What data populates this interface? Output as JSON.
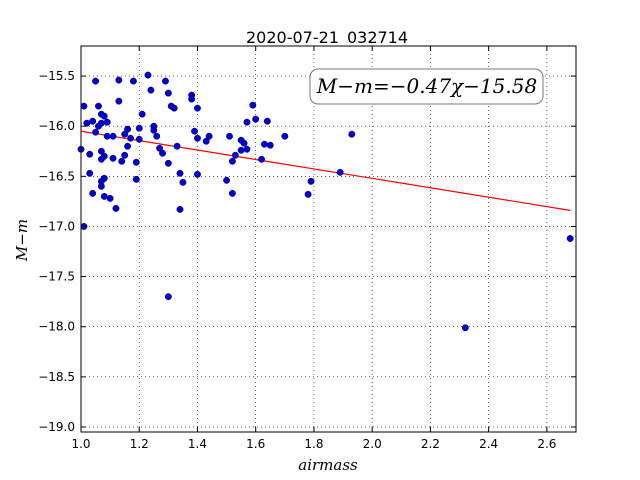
{
  "chart_data": {
    "type": "scatter",
    "title": "2020-07-21_032714",
    "xlabel": "airmass",
    "ylabel": "M−m",
    "xlim": [
      1.0,
      2.7
    ],
    "ylim": [
      -19.05,
      -15.2
    ],
    "y_inverted": true,
    "grid": true,
    "x_ticks": [
      1.0,
      1.2,
      1.4,
      1.6,
      1.8,
      2.0,
      2.2,
      2.4,
      2.6
    ],
    "x_tick_labels": [
      "1.0",
      "1.2",
      "1.4",
      "1.6",
      "1.8",
      "2.0",
      "2.2",
      "2.4",
      "2.6"
    ],
    "y_ticks": [
      -15.5,
      -16.0,
      -16.5,
      -17.0,
      -17.5,
      -18.0,
      -18.5,
      -19.0
    ],
    "y_tick_labels": [
      "−15.5",
      "−16.0",
      "−16.5",
      "−17.0",
      "−17.5",
      "−18.0",
      "−18.5",
      "−19.0"
    ],
    "annotation": "M−m=−0.47χ−15.58",
    "fit": {
      "slope": -0.47,
      "intercept": -15.58,
      "x_range": [
        1.0,
        2.68
      ],
      "color": "#ff0000"
    },
    "point_color": "#0000cc",
    "points": [
      [
        1.0,
        -16.23
      ],
      [
        1.01,
        -17.0
      ],
      [
        1.01,
        -15.8
      ],
      [
        1.02,
        -15.97
      ],
      [
        1.03,
        -16.28
      ],
      [
        1.03,
        -16.47
      ],
      [
        1.04,
        -16.67
      ],
      [
        1.04,
        -15.95
      ],
      [
        1.05,
        -15.55
      ],
      [
        1.05,
        -16.06
      ],
      [
        1.06,
        -16.0
      ],
      [
        1.06,
        -15.8
      ],
      [
        1.07,
        -15.88
      ],
      [
        1.07,
        -15.97
      ],
      [
        1.07,
        -16.25
      ],
      [
        1.07,
        -16.33
      ],
      [
        1.07,
        -16.55
      ],
      [
        1.07,
        -16.6
      ],
      [
        1.08,
        -15.9
      ],
      [
        1.08,
        -16.3
      ],
      [
        1.08,
        -16.52
      ],
      [
        1.08,
        -16.7
      ],
      [
        1.09,
        -15.96
      ],
      [
        1.09,
        -16.1
      ],
      [
        1.1,
        -16.72
      ],
      [
        1.11,
        -16.1
      ],
      [
        1.11,
        -16.32
      ],
      [
        1.12,
        -16.82
      ],
      [
        1.13,
        -15.54
      ],
      [
        1.13,
        -15.75
      ],
      [
        1.14,
        -16.35
      ],
      [
        1.15,
        -16.29
      ],
      [
        1.15,
        -16.08
      ],
      [
        1.16,
        -16.03
      ],
      [
        1.16,
        -16.2
      ],
      [
        1.17,
        -16.12
      ],
      [
        1.18,
        -15.55
      ],
      [
        1.19,
        -16.36
      ],
      [
        1.19,
        -16.53
      ],
      [
        1.2,
        -16.02
      ],
      [
        1.2,
        -16.13
      ],
      [
        1.21,
        -15.88
      ],
      [
        1.23,
        -15.49
      ],
      [
        1.24,
        -15.64
      ],
      [
        1.25,
        -16.0
      ],
      [
        1.25,
        -16.04
      ],
      [
        1.26,
        -16.1
      ],
      [
        1.27,
        -16.22
      ],
      [
        1.28,
        -16.27
      ],
      [
        1.29,
        -15.55
      ],
      [
        1.3,
        -15.67
      ],
      [
        1.3,
        -16.37
      ],
      [
        1.3,
        -17.7
      ],
      [
        1.31,
        -15.8
      ],
      [
        1.32,
        -15.82
      ],
      [
        1.33,
        -16.2
      ],
      [
        1.34,
        -16.47
      ],
      [
        1.34,
        -16.83
      ],
      [
        1.35,
        -16.56
      ],
      [
        1.38,
        -15.69
      ],
      [
        1.38,
        -15.73
      ],
      [
        1.39,
        -16.05
      ],
      [
        1.4,
        -16.12
      ],
      [
        1.4,
        -15.82
      ],
      [
        1.4,
        -16.48
      ],
      [
        1.43,
        -16.15
      ],
      [
        1.44,
        -16.1
      ],
      [
        1.5,
        -16.54
      ],
      [
        1.51,
        -16.1
      ],
      [
        1.52,
        -16.35
      ],
      [
        1.52,
        -16.67
      ],
      [
        1.53,
        -16.29
      ],
      [
        1.55,
        -16.14
      ],
      [
        1.55,
        -16.24
      ],
      [
        1.56,
        -16.17
      ],
      [
        1.57,
        -16.23
      ],
      [
        1.57,
        -15.96
      ],
      [
        1.59,
        -15.79
      ],
      [
        1.6,
        -15.93
      ],
      [
        1.62,
        -16.33
      ],
      [
        1.63,
        -16.18
      ],
      [
        1.64,
        -15.95
      ],
      [
        1.65,
        -16.19
      ],
      [
        1.7,
        -16.1
      ],
      [
        1.78,
        -16.68
      ],
      [
        1.79,
        -16.55
      ],
      [
        1.89,
        -16.46
      ],
      [
        1.93,
        -16.08
      ],
      [
        2.32,
        -18.01
      ],
      [
        2.68,
        -17.12
      ]
    ]
  }
}
